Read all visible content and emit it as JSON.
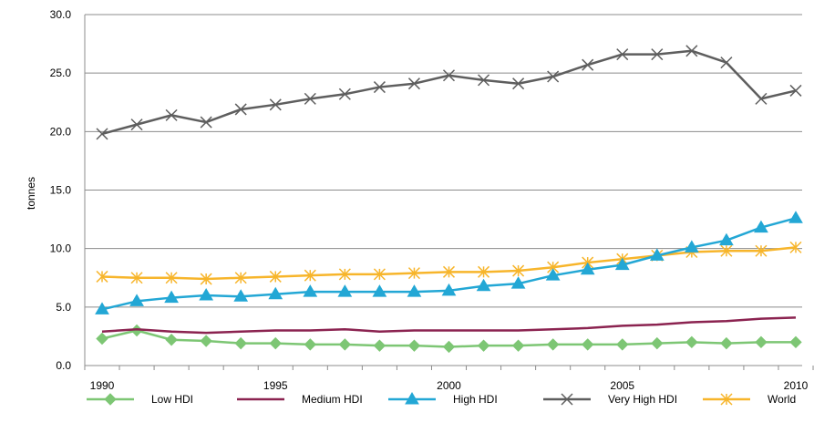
{
  "chart_data": {
    "type": "line",
    "title": "",
    "xlabel": "",
    "ylabel": "tonnes",
    "ylim": [
      0,
      30
    ],
    "xlim": [
      1990,
      2010
    ],
    "yticks": [
      "0.0",
      "5.0",
      "10.0",
      "15.0",
      "20.0",
      "25.0",
      "30.0"
    ],
    "xticks": [
      "1990",
      "1995",
      "2000",
      "2005",
      "2010"
    ],
    "grid": "horizontal",
    "legend_position": "bottom",
    "x": [
      1990,
      1991,
      1992,
      1993,
      1994,
      1995,
      1996,
      1997,
      1998,
      1999,
      2000,
      2001,
      2002,
      2003,
      2004,
      2005,
      2006,
      2007,
      2008,
      2009,
      2010
    ],
    "series": [
      {
        "name": "Low HDI",
        "color": "#7dc674",
        "marker": "diamond",
        "values": [
          2.3,
          3.0,
          2.2,
          2.1,
          1.9,
          1.9,
          1.8,
          1.8,
          1.7,
          1.7,
          1.6,
          1.7,
          1.7,
          1.8,
          1.8,
          1.8,
          1.9,
          2.0,
          1.9,
          2.0,
          2.0
        ]
      },
      {
        "name": "Medium HDI",
        "color": "#8b2350",
        "marker": "none",
        "values": [
          2.9,
          3.1,
          2.9,
          2.8,
          2.9,
          3.0,
          3.0,
          3.1,
          2.9,
          3.0,
          3.0,
          3.0,
          3.0,
          3.1,
          3.2,
          3.4,
          3.5,
          3.7,
          3.8,
          4.0,
          4.1
        ]
      },
      {
        "name": "High HDI",
        "color": "#23a7d5",
        "marker": "triangle",
        "values": [
          4.8,
          5.5,
          5.8,
          6.0,
          5.9,
          6.1,
          6.3,
          6.3,
          6.3,
          6.3,
          6.4,
          6.8,
          7.0,
          7.7,
          8.2,
          8.6,
          9.4,
          10.1,
          10.7,
          11.8,
          12.6
        ]
      },
      {
        "name": "Very High HDI",
        "color": "#5e5e5e",
        "marker": "x",
        "values": [
          19.8,
          20.6,
          21.4,
          20.8,
          21.9,
          22.3,
          22.8,
          23.2,
          23.8,
          24.1,
          24.8,
          24.4,
          24.1,
          24.7,
          25.7,
          26.6,
          26.6,
          26.9,
          25.9,
          22.8,
          23.5
        ]
      },
      {
        "name": "World",
        "color": "#f7b52b",
        "marker": "asterisk",
        "values": [
          7.6,
          7.5,
          7.5,
          7.4,
          7.5,
          7.6,
          7.7,
          7.8,
          7.8,
          7.9,
          8.0,
          8.0,
          8.1,
          8.4,
          8.8,
          9.1,
          9.4,
          9.7,
          9.8,
          9.8,
          10.1
        ]
      }
    ]
  }
}
